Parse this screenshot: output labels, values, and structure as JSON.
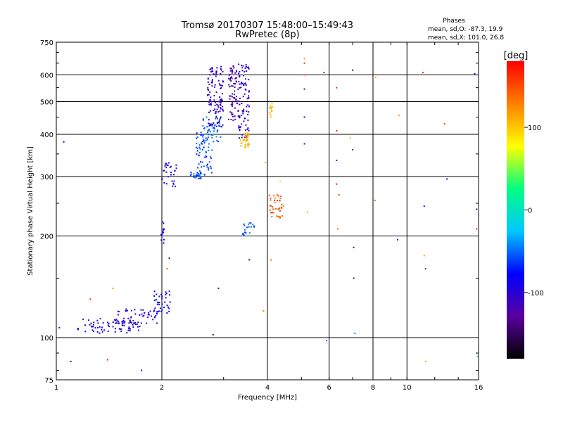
{
  "chart_data": {
    "type": "scatter",
    "title_line1": "Tromsø 20170307 15:48:00–15:49:43",
    "title_line2": "RwPretec (8p)",
    "annotation": {
      "heading": "Phases",
      "line1": "mean, sd,O: -87.3, 19.9",
      "line2": "mean, sd,X: 101.0, 26.8"
    },
    "xlabel": "Frequency [MHz]",
    "ylabel": "Stationary phase Virtual Height [km]",
    "x_scale": "log",
    "y_scale": "log",
    "xlim": [
      1,
      16
    ],
    "ylim": [
      75,
      750
    ],
    "x_ticks": [
      1,
      2,
      4,
      6,
      8,
      10,
      16
    ],
    "y_ticks": [
      75,
      100,
      200,
      300,
      400,
      500,
      600,
      750
    ],
    "x_gridlines": [
      2,
      4,
      6,
      8,
      10
    ],
    "y_gridlines": [
      100,
      200,
      300,
      400,
      500,
      600
    ],
    "grid": true,
    "colorbar": {
      "label": "[deg]",
      "range": [
        -180,
        180
      ],
      "ticks": [
        -100,
        0,
        100
      ],
      "colors": [
        "#000000",
        "#5a00a0",
        "#0000ff",
        "#00c8ff",
        "#00ff80",
        "#ffff00",
        "#ff8000",
        "#ff0000"
      ]
    },
    "clusters": [
      {
        "x": [
          1.15,
          1.75
        ],
        "y": [
          103,
          114
        ],
        "n": 70,
        "phase": [
          -105,
          -80
        ]
      },
      {
        "x": [
          1.45,
          1.95
        ],
        "y": [
          110,
          122
        ],
        "n": 55,
        "phase": [
          -110,
          -85
        ]
      },
      {
        "x": [
          1.9,
          2.12
        ],
        "y": [
          118,
          138
        ],
        "n": 35,
        "phase": [
          -95,
          -70
        ]
      },
      {
        "x": [
          1.99,
          2.03
        ],
        "y": [
          190,
          225
        ],
        "n": 12,
        "phase": [
          -100,
          -80
        ]
      },
      {
        "x": [
          2.0,
          2.2
        ],
        "y": [
          280,
          330
        ],
        "n": 30,
        "phase": [
          -110,
          -90
        ]
      },
      {
        "x": [
          2.4,
          2.6
        ],
        "y": [
          295,
          310
        ],
        "n": 20,
        "phase": [
          -70,
          -50
        ]
      },
      {
        "x": [
          2.5,
          2.8
        ],
        "y": [
          300,
          420
        ],
        "n": 70,
        "phase": [
          -70,
          -45
        ]
      },
      {
        "x": [
          2.6,
          2.95
        ],
        "y": [
          380,
          450
        ],
        "n": 40,
        "phase": [
          -65,
          -40
        ]
      },
      {
        "x": [
          2.7,
          3.0
        ],
        "y": [
          420,
          640
        ],
        "n": 110,
        "phase": [
          -115,
          -95
        ]
      },
      {
        "x": [
          3.1,
          3.3
        ],
        "y": [
          440,
          640
        ],
        "n": 70,
        "phase": [
          -130,
          -110
        ]
      },
      {
        "x": [
          3.3,
          3.55
        ],
        "y": [
          390,
          650
        ],
        "n": 90,
        "phase": [
          -110,
          -90
        ]
      },
      {
        "x": [
          3.35,
          3.55
        ],
        "y": [
          365,
          405
        ],
        "n": 35,
        "phase": [
          95,
          120
        ]
      },
      {
        "x": [
          3.4,
          3.7
        ],
        "y": [
          200,
          220
        ],
        "n": 18,
        "phase": [
          -65,
          -45
        ]
      },
      {
        "x": [
          4.0,
          4.15
        ],
        "y": [
          450,
          500
        ],
        "n": 12,
        "phase": [
          100,
          115
        ]
      },
      {
        "x": [
          4.05,
          4.45
        ],
        "y": [
          225,
          265
        ],
        "n": 40,
        "phase": [
          130,
          160
        ]
      }
    ],
    "sparse_points": [
      {
        "x": 1.02,
        "y": 107,
        "phase": -90
      },
      {
        "x": 1.05,
        "y": 380,
        "phase": -105
      },
      {
        "x": 1.1,
        "y": 85,
        "phase": -105
      },
      {
        "x": 1.25,
        "y": 130,
        "phase": 160
      },
      {
        "x": 1.4,
        "y": 86,
        "phase": 175
      },
      {
        "x": 1.45,
        "y": 140,
        "phase": 120
      },
      {
        "x": 1.75,
        "y": 80,
        "phase": -105
      },
      {
        "x": 2.07,
        "y": 160,
        "phase": 140
      },
      {
        "x": 2.1,
        "y": 172,
        "phase": -100
      },
      {
        "x": 2.8,
        "y": 102,
        "phase": -110
      },
      {
        "x": 2.9,
        "y": 140,
        "phase": -110
      },
      {
        "x": 3.55,
        "y": 170,
        "phase": -80
      },
      {
        "x": 3.9,
        "y": 120,
        "phase": 130
      },
      {
        "x": 3.95,
        "y": 330,
        "phase": 110
      },
      {
        "x": 4.1,
        "y": 170,
        "phase": 140
      },
      {
        "x": 4.35,
        "y": 290,
        "phase": 60
      },
      {
        "x": 5.1,
        "y": 670,
        "phase": 120
      },
      {
        "x": 5.1,
        "y": 650,
        "phase": 160
      },
      {
        "x": 5.1,
        "y": 600,
        "phase": 150
      },
      {
        "x": 5.1,
        "y": 545,
        "phase": -130
      },
      {
        "x": 5.1,
        "y": 450,
        "phase": -100
      },
      {
        "x": 5.1,
        "y": 375,
        "phase": -110
      },
      {
        "x": 5.2,
        "y": 235,
        "phase": 110
      },
      {
        "x": 5.8,
        "y": 610,
        "phase": -60
      },
      {
        "x": 5.9,
        "y": 98,
        "phase": -50
      },
      {
        "x": 6.3,
        "y": 550,
        "phase": 170
      },
      {
        "x": 6.3,
        "y": 410,
        "phase": 170
      },
      {
        "x": 6.3,
        "y": 335,
        "phase": -100
      },
      {
        "x": 6.3,
        "y": 285,
        "phase": 175
      },
      {
        "x": 6.4,
        "y": 265,
        "phase": 160
      },
      {
        "x": 6.35,
        "y": 210,
        "phase": 135
      },
      {
        "x": 6.9,
        "y": 390,
        "phase": 100
      },
      {
        "x": 7.0,
        "y": 620,
        "phase": -100
      },
      {
        "x": 7.0,
        "y": 360,
        "phase": -60
      },
      {
        "x": 7.05,
        "y": 185,
        "phase": -130
      },
      {
        "x": 7.05,
        "y": 150,
        "phase": -110
      },
      {
        "x": 7.1,
        "y": 103,
        "phase": -40
      },
      {
        "x": 8.1,
        "y": 255,
        "phase": 150
      },
      {
        "x": 8.15,
        "y": 590,
        "phase": 110
      },
      {
        "x": 9.4,
        "y": 195,
        "phase": -100
      },
      {
        "x": 9.5,
        "y": 455,
        "phase": 120
      },
      {
        "x": 11.1,
        "y": 610,
        "phase": 170
      },
      {
        "x": 11.2,
        "y": 245,
        "phase": -110
      },
      {
        "x": 11.2,
        "y": 175,
        "phase": 120
      },
      {
        "x": 11.3,
        "y": 160,
        "phase": -60
      },
      {
        "x": 11.3,
        "y": 85,
        "phase": 120
      },
      {
        "x": 12.8,
        "y": 430,
        "phase": 150
      },
      {
        "x": 13.0,
        "y": 295,
        "phase": -110
      },
      {
        "x": 15.6,
        "y": 605,
        "phase": -70
      },
      {
        "x": 15.8,
        "y": 240,
        "phase": -140
      },
      {
        "x": 15.8,
        "y": 210,
        "phase": 170
      },
      {
        "x": 15.9,
        "y": 88,
        "phase": 20
      }
    ]
  }
}
